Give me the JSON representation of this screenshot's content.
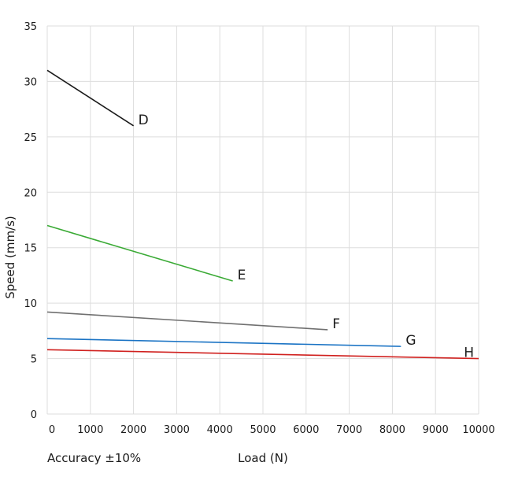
{
  "chart_data": {
    "type": "line",
    "xlabel": "Load (N)",
    "ylabel": "Speed (mm/s)",
    "note": "Accuracy ±10%",
    "xlim": [
      0,
      10000
    ],
    "ylim": [
      0,
      35
    ],
    "x_ticks": [
      0,
      1000,
      2000,
      3000,
      4000,
      5000,
      6000,
      7000,
      8000,
      9000,
      10000
    ],
    "y_ticks": [
      0,
      5,
      10,
      15,
      20,
      25,
      30,
      35
    ],
    "grid": true,
    "legend": "none",
    "series": [
      {
        "name": "D",
        "color": "#1a1a1a",
        "points": [
          [
            0,
            31
          ],
          [
            2000,
            26
          ]
        ]
      },
      {
        "name": "E",
        "color": "#3aaa35",
        "points": [
          [
            0,
            17
          ],
          [
            4300,
            12
          ]
        ]
      },
      {
        "name": "F",
        "color": "#707070",
        "points": [
          [
            0,
            9.2
          ],
          [
            6500,
            7.6
          ]
        ]
      },
      {
        "name": "G",
        "color": "#1a73c4",
        "points": [
          [
            0,
            6.8
          ],
          [
            8200,
            6.1
          ]
        ]
      },
      {
        "name": "H",
        "color": "#d0201e",
        "points": [
          [
            0,
            5.8
          ],
          [
            10000,
            5.0
          ]
        ]
      }
    ]
  }
}
